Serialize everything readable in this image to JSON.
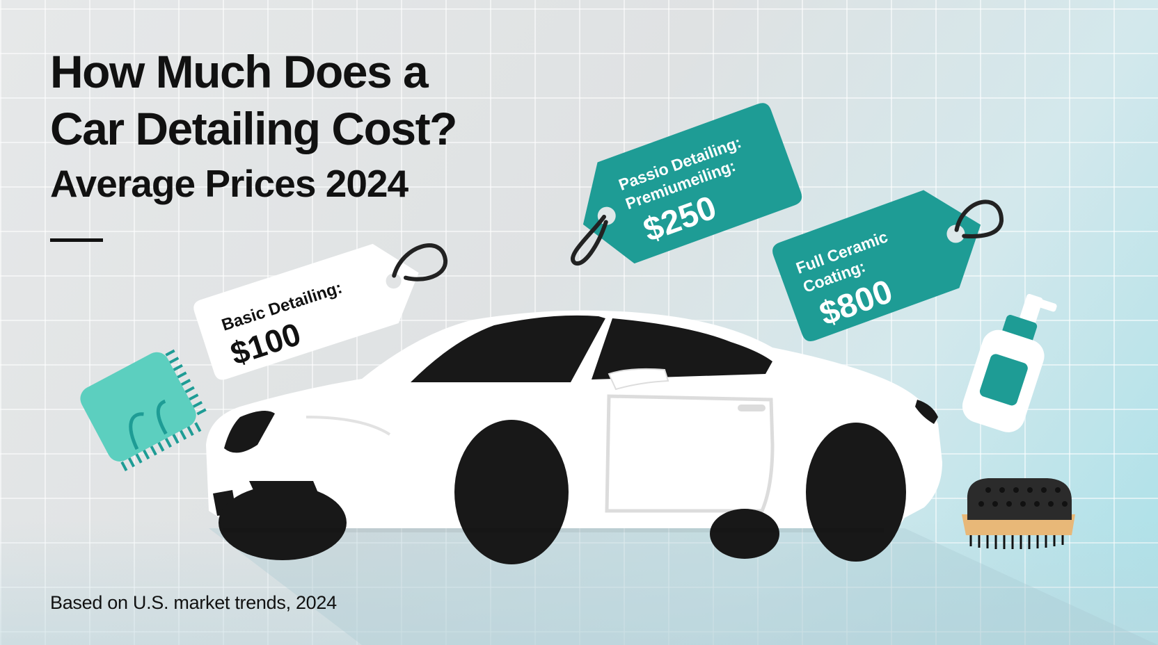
{
  "headline": {
    "line1": "How Much Does a",
    "line2": "Car Detailing Cost?",
    "subtitle": "Average Prices 2024"
  },
  "tags": {
    "basic": {
      "label": "Basic Detailing:",
      "price": "$100"
    },
    "premium": {
      "label_line1": "Passio Detailing:",
      "label_line2": "Premiumeiling:",
      "price": "$250"
    },
    "ceramic": {
      "label_line1": "Full Ceramic",
      "label_line2": "Coating:",
      "price": "$800"
    }
  },
  "footnote": "Based on U.S. market trends, 2024",
  "colors": {
    "teal": "#1e9c95",
    "mint": "#5ccfbf",
    "ink": "#111111",
    "white": "#ffffff"
  },
  "icons": [
    "microfiber-towel-icon",
    "spray-bottle-icon",
    "scrub-brush-icon",
    "car-illustration"
  ]
}
